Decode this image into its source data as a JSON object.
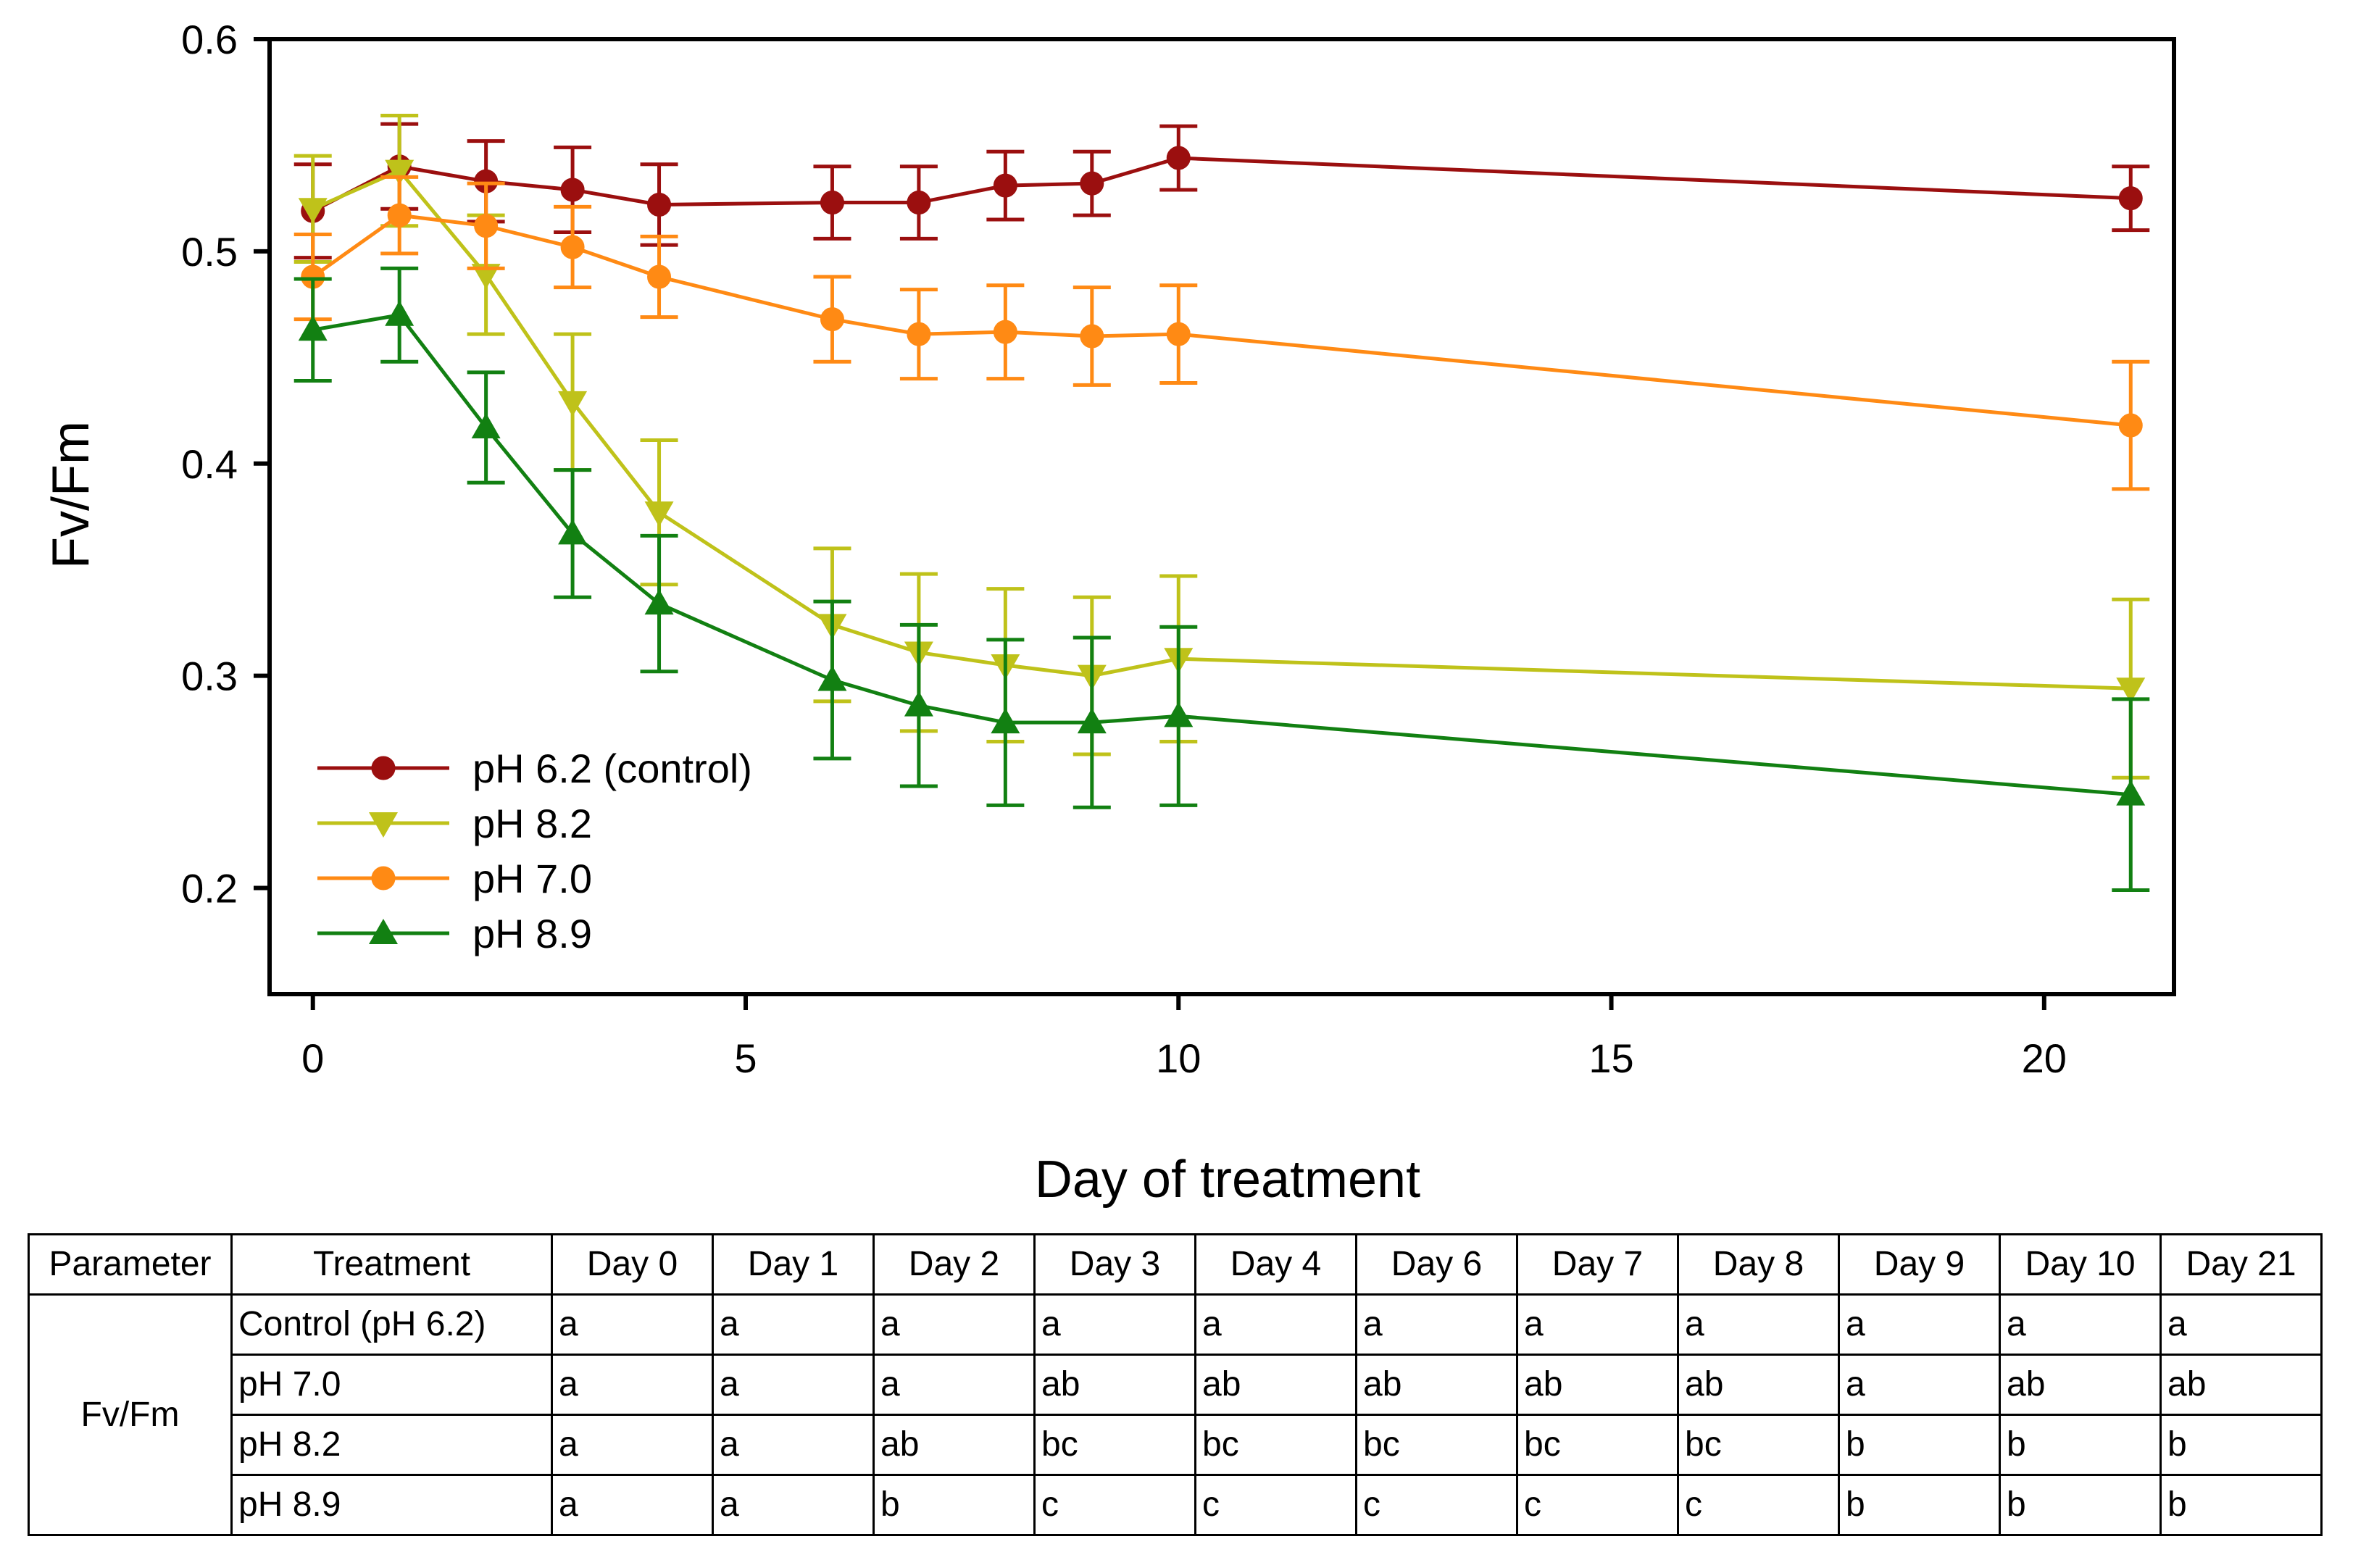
{
  "chart_data": {
    "type": "line",
    "xlabel": "Day of treatment",
    "ylabel": "Fv/Fm",
    "xlim": [
      -0.5,
      21.5
    ],
    "ylim": [
      0.15,
      0.6
    ],
    "xticks": [
      0,
      5,
      10,
      15,
      20
    ],
    "xtick_labels": [
      "0",
      "5",
      "10",
      "15",
      "20"
    ],
    "yticks": [
      0.2,
      0.3,
      0.4,
      0.5,
      0.6
    ],
    "ytick_labels": [
      "0.2",
      "0.3",
      "0.4",
      "0.5",
      "0.6"
    ],
    "legend_position": "bottom-left",
    "x": [
      0,
      1,
      2,
      3,
      4,
      6,
      7,
      8,
      9,
      10,
      21
    ],
    "series": [
      {
        "name": "pH 6.2 (control)",
        "color": "#9b0f0f",
        "marker": "circle",
        "values": [
          0.519,
          0.54,
          0.533,
          0.529,
          0.522,
          0.523,
          0.523,
          0.531,
          0.532,
          0.544,
          0.525
        ],
        "errors": [
          0.022,
          0.02,
          0.019,
          0.02,
          0.019,
          0.017,
          0.017,
          0.016,
          0.015,
          0.015,
          0.015
        ]
      },
      {
        "name": "pH 8.2",
        "color": "#bfc21a",
        "marker": "triangle-down",
        "values": [
          0.52,
          0.538,
          0.489,
          0.429,
          0.377,
          0.324,
          0.311,
          0.305,
          0.3,
          0.308,
          0.294
        ],
        "errors": [
          0.025,
          0.026,
          0.028,
          0.032,
          0.034,
          0.036,
          0.037,
          0.036,
          0.037,
          0.039,
          0.042
        ]
      },
      {
        "name": "pH 7.0",
        "color": "#ff8a14",
        "marker": "circle",
        "values": [
          0.488,
          0.517,
          0.512,
          0.502,
          0.488,
          0.468,
          0.461,
          0.462,
          0.46,
          0.461,
          0.418
        ],
        "errors": [
          0.02,
          0.018,
          0.02,
          0.019,
          0.019,
          0.02,
          0.021,
          0.022,
          0.023,
          0.023,
          0.03
        ]
      },
      {
        "name": "pH 8.9",
        "color": "#128012",
        "marker": "triangle-up",
        "values": [
          0.463,
          0.47,
          0.417,
          0.367,
          0.334,
          0.298,
          0.286,
          0.278,
          0.278,
          0.281,
          0.244
        ],
        "errors": [
          0.024,
          0.022,
          0.026,
          0.03,
          0.032,
          0.037,
          0.038,
          0.039,
          0.04,
          0.042,
          0.045
        ]
      }
    ]
  },
  "table": {
    "headers": [
      "Parameter",
      "Treatment",
      "Day 0",
      "Day 1",
      "Day 2",
      "Day 3",
      "Day 4",
      "Day 6",
      "Day 7",
      "Day 8",
      "Day 9",
      "Day 10",
      "Day 21"
    ],
    "parameter": "Fv/Fm",
    "rows": [
      {
        "treatment": "Control (pH 6.2)",
        "cells": [
          "a",
          "a",
          "a",
          "a",
          "a",
          "a",
          "a",
          "a",
          "a",
          "a",
          "a"
        ]
      },
      {
        "treatment": "pH 7.0",
        "cells": [
          "a",
          "a",
          "a",
          "ab",
          "ab",
          "ab",
          "ab",
          "ab",
          "a",
          "ab",
          "ab"
        ]
      },
      {
        "treatment": "pH 8.2",
        "cells": [
          "a",
          "a",
          "ab",
          "bc",
          "bc",
          "bc",
          "bc",
          "bc",
          "b",
          "b",
          "b"
        ]
      },
      {
        "treatment": "pH 8.9",
        "cells": [
          "a",
          "a",
          "b",
          "c",
          "c",
          "c",
          "c",
          "c",
          "b",
          "b",
          "b"
        ]
      }
    ]
  }
}
